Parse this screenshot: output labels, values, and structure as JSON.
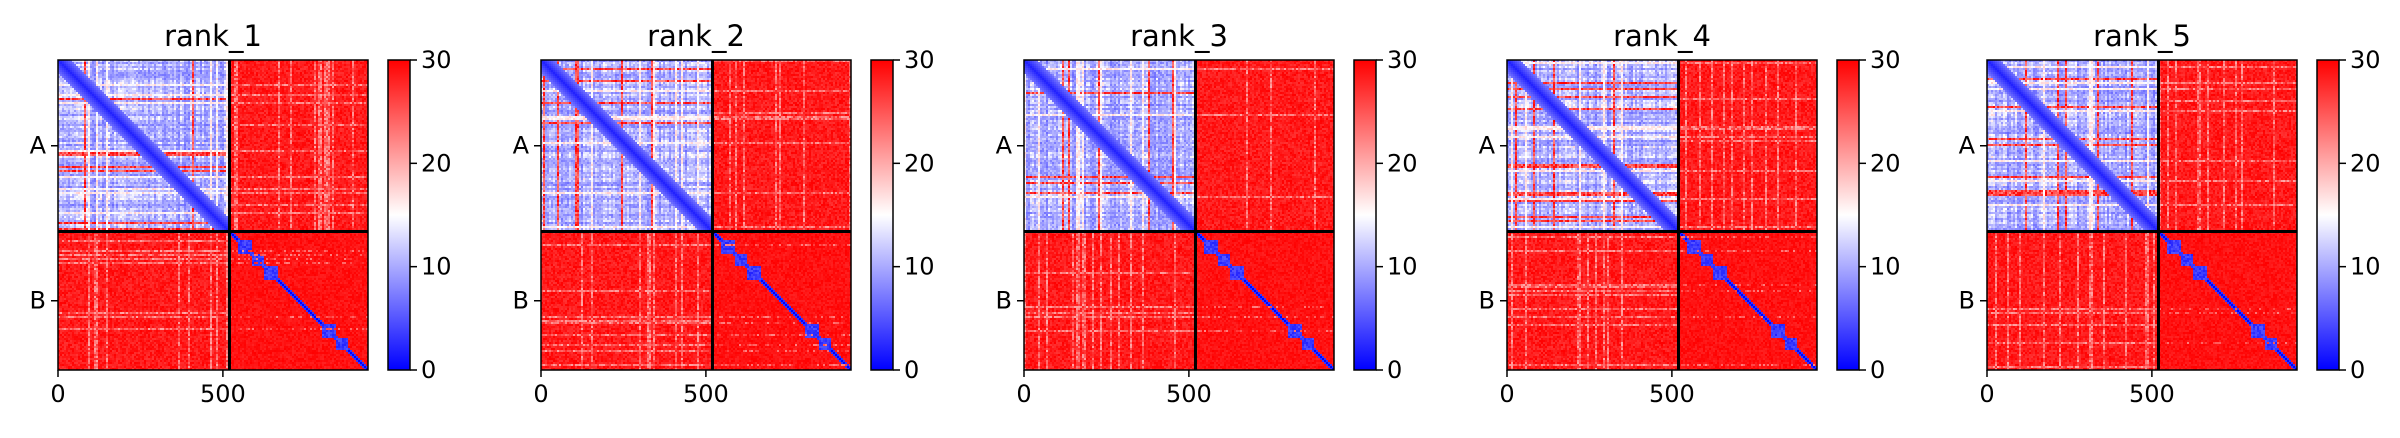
{
  "chart_data": {
    "type": "heatmap",
    "panel_titles": [
      "rank_1",
      "rank_2",
      "rank_3",
      "rank_4",
      "rank_5"
    ],
    "x_ticks": [
      {
        "value": 0,
        "label": "0"
      },
      {
        "value": 500,
        "label": "500"
      }
    ],
    "y_segments": [
      {
        "label": "A",
        "start": 0,
        "end": 520
      },
      {
        "label": "B",
        "start": 520,
        "end": 940
      }
    ],
    "n_residues": 940,
    "colorbar": {
      "min": 0,
      "max": 30,
      "ticks": [
        0,
        10,
        20,
        30
      ],
      "colormap": "bwr"
    },
    "colors": {
      "low": "#0000ff",
      "mid": "#ffffff",
      "high": "#ff0000"
    },
    "domain_blocks_B": [
      [
        545,
        590
      ],
      [
        590,
        625
      ],
      [
        625,
        665
      ],
      [
        800,
        840
      ],
      [
        840,
        880
      ]
    ]
  }
}
